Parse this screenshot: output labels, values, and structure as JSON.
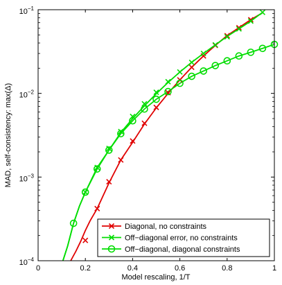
{
  "chart_data": {
    "type": "line",
    "title": "",
    "xlabel": "Model rescaling, 1/T",
    "ylabel": "MAD, self-consistency: max(Δ)",
    "xlim": [
      0,
      1
    ],
    "ylim": [
      0.0001,
      0.1
    ],
    "yscale": "log",
    "grid": false,
    "legend_position": "bottom-right",
    "x_ticks": [
      {
        "value": 0,
        "label": "0"
      },
      {
        "value": 0.2,
        "label": "0.2"
      },
      {
        "value": 0.4,
        "label": "0.4"
      },
      {
        "value": 0.6,
        "label": "0.6"
      },
      {
        "value": 0.8,
        "label": "0.8"
      },
      {
        "value": 1,
        "label": "1"
      }
    ],
    "y_ticks": [
      {
        "value": 0.0001,
        "base": "10",
        "exp": "−4"
      },
      {
        "value": 0.001,
        "base": "10",
        "exp": "−3"
      },
      {
        "value": 0.01,
        "base": "10",
        "exp": "−2"
      },
      {
        "value": 0.1,
        "base": "10",
        "exp": "−1"
      }
    ],
    "series": [
      {
        "name": "Diagonal, no constraints",
        "color": "#e00000",
        "marker": "x",
        "curve": [
          [
            0.138,
            0.0001
          ],
          [
            0.16,
            0.00013
          ],
          [
            0.18,
            0.00017
          ],
          [
            0.2,
            0.00023
          ],
          [
            0.22,
            0.0003
          ],
          [
            0.25,
            0.00042
          ],
          [
            0.3,
            0.00085
          ],
          [
            0.35,
            0.0016
          ],
          [
            0.4,
            0.0026
          ],
          [
            0.45,
            0.0043
          ],
          [
            0.5,
            0.0067
          ],
          [
            0.55,
            0.01
          ],
          [
            0.6,
            0.0145
          ],
          [
            0.65,
            0.0205
          ],
          [
            0.7,
            0.028
          ],
          [
            0.75,
            0.0375
          ],
          [
            0.8,
            0.049
          ],
          [
            0.85,
            0.061
          ],
          [
            0.9,
            0.076
          ],
          [
            0.95,
            0.092
          ]
        ],
        "markers": [
          [
            0.2,
            0.000175
          ],
          [
            0.25,
            0.00042
          ],
          [
            0.3,
            0.00088
          ],
          [
            0.35,
            0.0016
          ],
          [
            0.4,
            0.0027
          ],
          [
            0.45,
            0.0044
          ],
          [
            0.5,
            0.0068
          ],
          [
            0.55,
            0.0102
          ],
          [
            0.6,
            0.0145
          ],
          [
            0.65,
            0.0205
          ],
          [
            0.7,
            0.028
          ],
          [
            0.75,
            0.0375
          ],
          [
            0.8,
            0.049
          ],
          [
            0.85,
            0.061
          ],
          [
            0.9,
            0.076
          ]
        ]
      },
      {
        "name": "Off−diagonal error, no constraints",
        "color": "#00dd00",
        "marker": "x",
        "curve": [
          [
            0.105,
            0.0001
          ],
          [
            0.125,
            0.00015
          ],
          [
            0.15,
            0.00028
          ],
          [
            0.175,
            0.00045
          ],
          [
            0.2,
            0.00066
          ],
          [
            0.25,
            0.0013
          ],
          [
            0.3,
            0.0021
          ],
          [
            0.35,
            0.0034
          ],
          [
            0.4,
            0.005
          ],
          [
            0.45,
            0.0071
          ],
          [
            0.5,
            0.0099
          ],
          [
            0.55,
            0.0135
          ],
          [
            0.6,
            0.018
          ],
          [
            0.65,
            0.0235
          ],
          [
            0.7,
            0.03
          ],
          [
            0.75,
            0.038
          ],
          [
            0.8,
            0.048
          ],
          [
            0.85,
            0.059
          ],
          [
            0.9,
            0.073
          ],
          [
            0.95,
            0.093
          ]
        ],
        "markers": [
          [
            0.2,
            0.00066
          ],
          [
            0.25,
            0.0013
          ],
          [
            0.3,
            0.0022
          ],
          [
            0.35,
            0.0035
          ],
          [
            0.4,
            0.0053
          ],
          [
            0.45,
            0.0075
          ],
          [
            0.5,
            0.0103
          ],
          [
            0.55,
            0.0138
          ],
          [
            0.6,
            0.018
          ],
          [
            0.65,
            0.0235
          ],
          [
            0.7,
            0.03
          ],
          [
            0.75,
            0.038
          ],
          [
            0.8,
            0.0475
          ],
          [
            0.85,
            0.059
          ],
          [
            0.9,
            0.073
          ],
          [
            0.95,
            0.093
          ]
        ]
      },
      {
        "name": "Off−diagonal, diagonal constraints",
        "color": "#00dd00",
        "marker": "o",
        "curve": [
          [
            0.105,
            0.0001
          ],
          [
            0.125,
            0.00015
          ],
          [
            0.15,
            0.00028
          ],
          [
            0.175,
            0.00045
          ],
          [
            0.2,
            0.00066
          ],
          [
            0.25,
            0.00125
          ],
          [
            0.3,
            0.0021
          ],
          [
            0.35,
            0.0033
          ],
          [
            0.4,
            0.0047
          ],
          [
            0.45,
            0.0065
          ],
          [
            0.5,
            0.0085
          ],
          [
            0.55,
            0.0105
          ],
          [
            0.6,
            0.0132
          ],
          [
            0.65,
            0.016
          ],
          [
            0.7,
            0.0185
          ],
          [
            0.75,
            0.0215
          ],
          [
            0.8,
            0.0245
          ],
          [
            0.85,
            0.028
          ],
          [
            0.9,
            0.031
          ],
          [
            0.95,
            0.0345
          ],
          [
            1.0,
            0.0385
          ]
        ],
        "markers": [
          [
            0.15,
            0.00028
          ],
          [
            0.2,
            0.00066
          ],
          [
            0.25,
            0.00125
          ],
          [
            0.3,
            0.0021
          ],
          [
            0.35,
            0.0033
          ],
          [
            0.4,
            0.0047
          ],
          [
            0.45,
            0.0065
          ],
          [
            0.5,
            0.0085
          ],
          [
            0.55,
            0.0105
          ],
          [
            0.6,
            0.0132
          ],
          [
            0.65,
            0.016
          ],
          [
            0.7,
            0.0185
          ],
          [
            0.75,
            0.0215
          ],
          [
            0.8,
            0.0245
          ],
          [
            0.85,
            0.028
          ],
          [
            0.9,
            0.031
          ],
          [
            0.95,
            0.0345
          ],
          [
            1.0,
            0.0385
          ]
        ]
      }
    ]
  }
}
